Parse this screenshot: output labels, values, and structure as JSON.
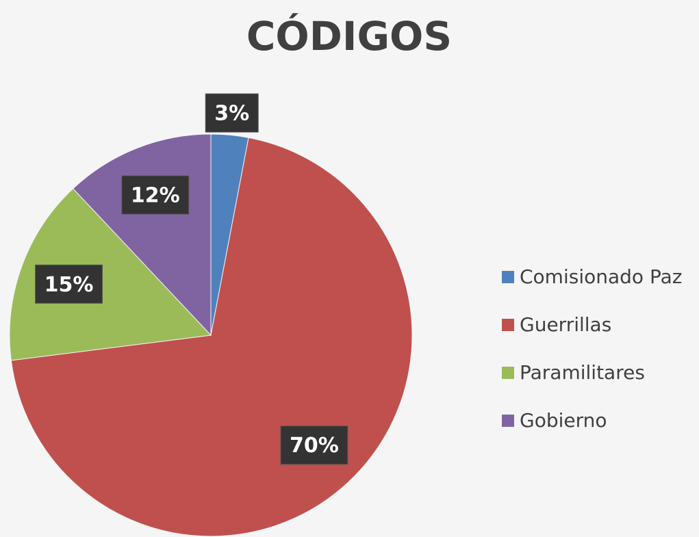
{
  "chart_data": {
    "type": "pie",
    "title": "CÓDIGOS",
    "categories": [
      "Comisionado Paz",
      "Guerrillas",
      "Paramilitares",
      "Gobierno"
    ],
    "values": [
      3,
      70,
      15,
      12
    ],
    "value_labels": [
      "3%",
      "70%",
      "15%",
      "12%"
    ],
    "colors": [
      "#4f81bd",
      "#c0504d",
      "#9bbb59",
      "#8064a2"
    ],
    "legend": "right"
  }
}
